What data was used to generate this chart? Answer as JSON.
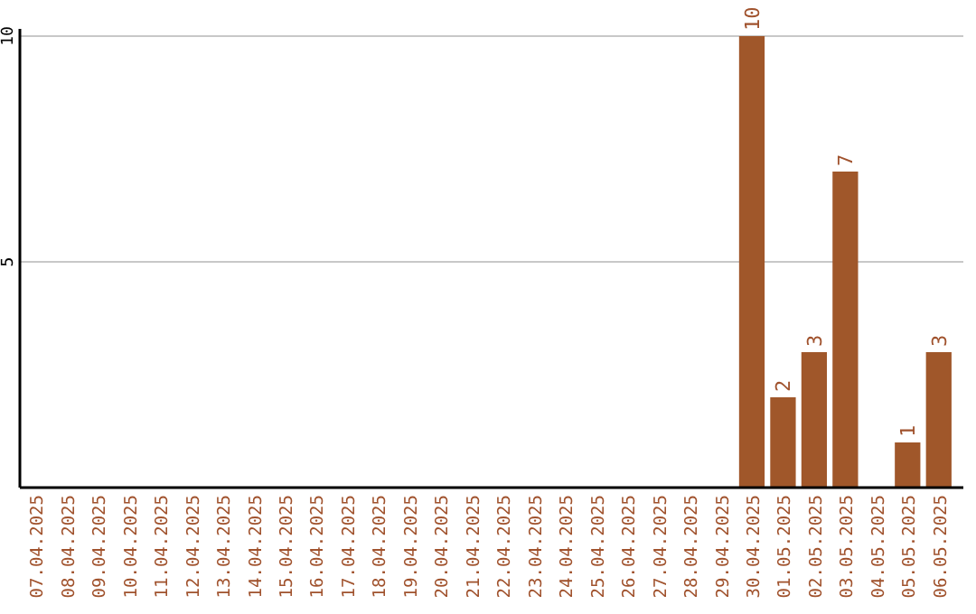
{
  "chart_data": {
    "type": "bar",
    "categories": [
      "07.04.2025",
      "08.04.2025",
      "09.04.2025",
      "10.04.2025",
      "11.04.2025",
      "12.04.2025",
      "13.04.2025",
      "14.04.2025",
      "15.04.2025",
      "16.04.2025",
      "17.04.2025",
      "18.04.2025",
      "19.04.2025",
      "20.04.2025",
      "21.04.2025",
      "22.04.2025",
      "23.04.2025",
      "24.04.2025",
      "25.04.2025",
      "26.04.2025",
      "27.04.2025",
      "28.04.2025",
      "29.04.2025",
      "30.04.2025",
      "01.05.2025",
      "02.05.2025",
      "03.05.2025",
      "04.05.2025",
      "05.05.2025",
      "06.05.2025"
    ],
    "values": [
      0,
      0,
      0,
      0,
      0,
      0,
      0,
      0,
      0,
      0,
      0,
      0,
      0,
      0,
      0,
      0,
      0,
      0,
      0,
      0,
      0,
      0,
      0,
      10,
      2,
      3,
      7,
      0,
      1,
      3
    ],
    "value_labels": [
      null,
      null,
      null,
      null,
      null,
      null,
      null,
      null,
      null,
      null,
      null,
      null,
      null,
      null,
      null,
      null,
      null,
      null,
      null,
      null,
      null,
      null,
      null,
      "10",
      "2",
      "3",
      "7",
      null,
      "1",
      "3"
    ],
    "color": "#a0572a",
    "ylim": [
      0,
      10
    ],
    "yticks": [
      5,
      10
    ],
    "grid": "y"
  }
}
